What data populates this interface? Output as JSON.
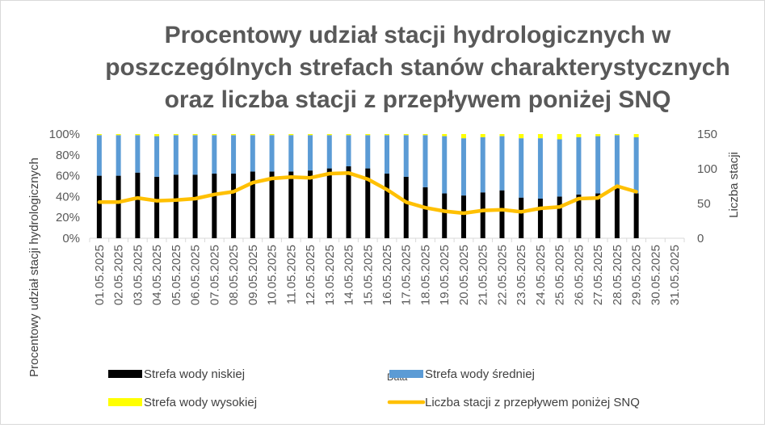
{
  "chart_data": {
    "type": "bar",
    "stacked": true,
    "title_lines": [
      "Procentowy udział stacji hydrologicznych w",
      "poszczególnych strefach stanów charakterystycznych",
      "oraz liczba stacji z przepływem poniżej SNQ"
    ],
    "ylabel": "Procentowy udział stacji hydrologicznych",
    "y2label": "Liczba stacji",
    "xlabel_overlap": "Data",
    "ylim": [
      0,
      100
    ],
    "y2lim": [
      0,
      150
    ],
    "yticks": [
      "0%",
      "20%",
      "40%",
      "60%",
      "80%",
      "100%"
    ],
    "y2ticks": [
      "0",
      "50",
      "100",
      "150"
    ],
    "categories": [
      "01.05.2025",
      "02.05.2025",
      "03.05.2025",
      "04.05.2025",
      "05.05.2025",
      "06.05.2025",
      "07.05.2025",
      "08.05.2025",
      "09.05.2025",
      "10.05.2025",
      "11.05.2025",
      "12.05.2025",
      "13.05.2025",
      "14.05.2025",
      "15.05.2025",
      "16.05.2025",
      "17.05.2025",
      "18.05.2025",
      "19.05.2025",
      "20.05.2025",
      "21.05.2025",
      "22.05.2025",
      "23.05.2025",
      "24.05.2025",
      "25.05.2025",
      "26.05.2025",
      "27.05.2025",
      "28.05.2025",
      "29.05.2025",
      "30.05.2025",
      "31.05.2025"
    ],
    "series": [
      {
        "name": "Strefa wody niskiej",
        "kind": "bar",
        "color": "#000000",
        "values": [
          60,
          60,
          63,
          59,
          61,
          61,
          62,
          62,
          64,
          64,
          64,
          65,
          67,
          69,
          67,
          62,
          59,
          49,
          43,
          41,
          44,
          46,
          39,
          38,
          40,
          42,
          43,
          48,
          43,
          null,
          null
        ]
      },
      {
        "name": "Strefa wody średniej",
        "kind": "bar",
        "color": "#5b9bd5",
        "values": [
          39,
          39,
          36,
          39,
          38,
          38,
          37,
          37,
          35,
          35,
          35,
          34,
          32,
          30,
          32,
          37,
          40,
          50,
          55,
          55,
          53,
          52,
          57,
          58,
          55,
          55,
          55,
          51,
          54,
          null,
          null
        ]
      },
      {
        "name": "Strefa wody wysokiej",
        "kind": "bar",
        "color": "#ffff00",
        "values": [
          1,
          1,
          1,
          2,
          1,
          1,
          1,
          1,
          1,
          1,
          1,
          1,
          1,
          1,
          1,
          1,
          1,
          1,
          2,
          4,
          3,
          2,
          4,
          4,
          5,
          3,
          2,
          1,
          3,
          null,
          null
        ]
      },
      {
        "name": "Liczba stacji z przepływem poniżej SNQ",
        "kind": "line",
        "axis": "right",
        "color": "#ffc000",
        "values": [
          52,
          52,
          58,
          54,
          55,
          57,
          63,
          67,
          80,
          86,
          88,
          87,
          93,
          94,
          85,
          70,
          52,
          44,
          39,
          36,
          40,
          41,
          38,
          43,
          45,
          57,
          58,
          75,
          67,
          null,
          null
        ]
      }
    ],
    "legend_position": "bottom"
  }
}
